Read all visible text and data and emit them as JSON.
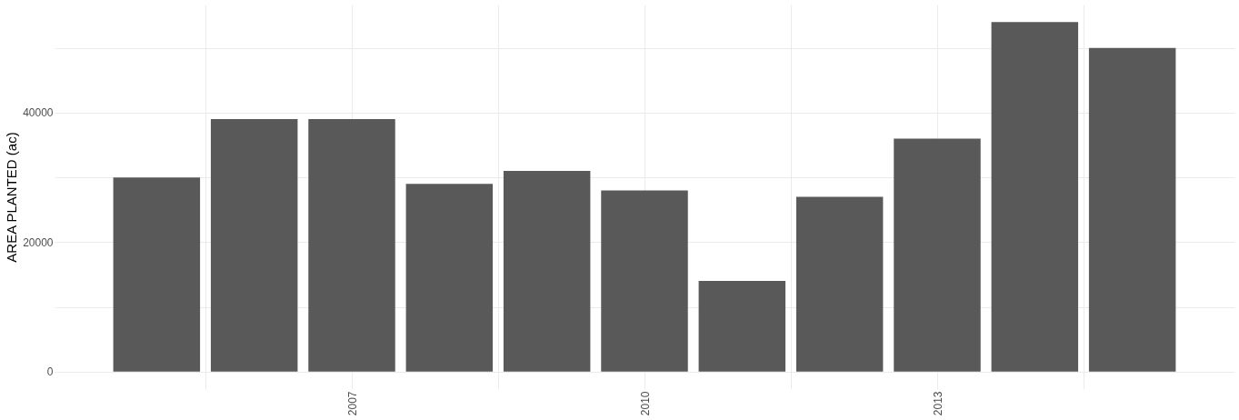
{
  "chart_data": {
    "type": "bar",
    "ylabel": "AREA PLANTED (ac)",
    "x": [
      2005,
      2006,
      2007,
      2008,
      2009,
      2010,
      2011,
      2012,
      2013,
      2014,
      2015
    ],
    "series": [
      {
        "color": "#595959",
        "values": [
          30000,
          39000,
          39000,
          29000,
          31000,
          28000,
          14000,
          27000,
          36000,
          54000,
          50000
        ]
      }
    ],
    "xlim": [
      2004,
      2016
    ],
    "xticks": [
      {
        "value": 2005.5,
        "label": null
      },
      2007,
      {
        "value": 2008.5,
        "label": null
      },
      2010,
      {
        "value": 2011.5,
        "label": null
      },
      2013,
      {
        "value": 2014.5,
        "label": null
      }
    ],
    "ylim": [
      -2700,
      56700
    ],
    "yticks": [
      0,
      {
        "value": 10000,
        "label": null
      },
      20000,
      {
        "value": 30000,
        "label": null
      },
      40000,
      {
        "value": 50000,
        "label": null
      }
    ],
    "grid": true
  }
}
